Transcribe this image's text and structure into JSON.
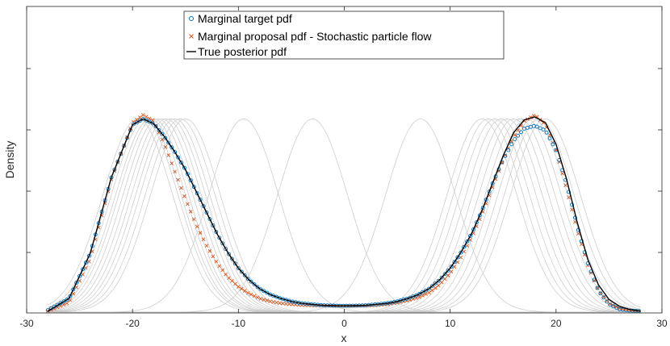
{
  "chart_data": {
    "type": "line",
    "title": "",
    "xlabel": "x",
    "ylabel": "Density",
    "xlim": [
      -30,
      30
    ],
    "x_ticks": [
      -30,
      -20,
      -10,
      0,
      10,
      20,
      30
    ],
    "x_tick_labels": [
      "-30",
      "-20",
      "-10",
      "0",
      "10",
      "20",
      "30"
    ],
    "ylim": [
      0,
      1
    ],
    "grid": false,
    "legend_position": "top-center",
    "legend": [
      {
        "name": "Marginal target pdf",
        "marker": "circle",
        "color": "#0072BD"
      },
      {
        "name": "Marginal proposal pdf - Stochastic particle flow",
        "marker": "x",
        "color": "#D95319"
      },
      {
        "name": "True posterior pdf",
        "marker": "line",
        "color": "#000000"
      }
    ],
    "series": [
      {
        "name": "True posterior pdf",
        "color": "#000000",
        "x": [
          -28,
          -26,
          -24,
          -22,
          -20,
          -19,
          -18,
          -17,
          -16,
          -15,
          -14,
          -13,
          -12,
          -11,
          -10,
          -9,
          -8,
          -7,
          -6,
          -5,
          -4,
          -3,
          -2,
          -1,
          0,
          1,
          2,
          3,
          4,
          5,
          6,
          7,
          8,
          9,
          10,
          11,
          12,
          13,
          14,
          15,
          16,
          17,
          18,
          19,
          20,
          21,
          22,
          23,
          24,
          25,
          26,
          27,
          28
        ],
        "y": [
          0.005,
          0.07,
          0.3,
          0.69,
          0.96,
          0.99,
          0.965,
          0.9,
          0.82,
          0.73,
          0.62,
          0.51,
          0.4,
          0.305,
          0.225,
          0.165,
          0.12,
          0.09,
          0.07,
          0.055,
          0.045,
          0.04,
          0.035,
          0.033,
          0.032,
          0.033,
          0.035,
          0.04,
          0.045,
          0.055,
          0.07,
          0.09,
          0.12,
          0.165,
          0.225,
          0.305,
          0.4,
          0.52,
          0.66,
          0.8,
          0.92,
          0.985,
          1.0,
          0.97,
          0.86,
          0.68,
          0.46,
          0.27,
          0.14,
          0.065,
          0.03,
          0.013,
          0.005
        ]
      },
      {
        "name": "Marginal target pdf",
        "color": "#0072BD",
        "x": [
          -28,
          -26,
          -24,
          -22,
          -20,
          -19,
          -18,
          -17,
          -16,
          -15,
          -14,
          -13,
          -12,
          -11,
          -10,
          -9,
          -8,
          -7,
          -6,
          -5,
          -4,
          -3,
          -2,
          -1,
          0,
          1,
          2,
          3,
          4,
          5,
          6,
          7,
          8,
          9,
          10,
          11,
          12,
          13,
          14,
          15,
          16,
          17,
          18,
          19,
          20,
          21,
          22,
          23,
          24,
          25,
          26,
          27,
          28
        ],
        "y": [
          0.01,
          0.07,
          0.3,
          0.69,
          0.96,
          0.99,
          0.965,
          0.9,
          0.82,
          0.73,
          0.62,
          0.51,
          0.4,
          0.305,
          0.225,
          0.165,
          0.12,
          0.09,
          0.07,
          0.055,
          0.045,
          0.04,
          0.035,
          0.033,
          0.032,
          0.033,
          0.035,
          0.04,
          0.045,
          0.055,
          0.07,
          0.09,
          0.12,
          0.165,
          0.225,
          0.305,
          0.4,
          0.52,
          0.66,
          0.78,
          0.88,
          0.94,
          0.955,
          0.93,
          0.83,
          0.66,
          0.44,
          0.25,
          0.11,
          0.04,
          0.015,
          0.008,
          0.005
        ]
      },
      {
        "name": "Marginal proposal pdf - Stochastic particle flow",
        "color": "#D95319",
        "x": [
          -28,
          -26,
          -24,
          -22,
          -20,
          -19,
          -18,
          -17,
          -16,
          -15,
          -14,
          -13,
          -12,
          -11,
          -10,
          -9,
          -8,
          -7,
          -6,
          -5,
          -4,
          -3,
          -2,
          -1,
          0,
          1,
          2,
          3,
          4,
          5,
          6,
          7,
          8,
          9,
          10,
          11,
          12,
          13,
          14,
          15,
          16,
          17,
          18,
          19,
          20,
          21,
          22,
          23,
          24,
          25,
          26,
          27,
          28
        ],
        "y": [
          0.005,
          0.05,
          0.27,
          0.68,
          0.97,
          1.01,
          0.98,
          0.86,
          0.72,
          0.58,
          0.45,
          0.34,
          0.25,
          0.18,
          0.13,
          0.095,
          0.07,
          0.055,
          0.045,
          0.04,
          0.036,
          0.034,
          0.033,
          0.032,
          0.032,
          0.032,
          0.033,
          0.035,
          0.04,
          0.048,
          0.06,
          0.075,
          0.1,
          0.14,
          0.2,
          0.28,
          0.38,
          0.5,
          0.64,
          0.78,
          0.9,
          0.98,
          1.01,
          0.96,
          0.83,
          0.63,
          0.42,
          0.24,
          0.11,
          0.045,
          0.02,
          0.01,
          0.005
        ]
      }
    ],
    "background_components": {
      "color": "#c8c8c8",
      "peak": 0.99,
      "sigma": 3.3,
      "means": [
        -19.5,
        -19,
        -18.7,
        -18.3,
        -18,
        -17.6,
        -17.2,
        -16.8,
        -16.4,
        -16,
        -15.5,
        -15,
        -9.5,
        -3,
        7.2,
        13,
        13.6,
        14.2,
        14.8,
        15.4,
        16,
        16.6,
        17.2,
        17.8,
        18.4,
        19
      ]
    }
  }
}
